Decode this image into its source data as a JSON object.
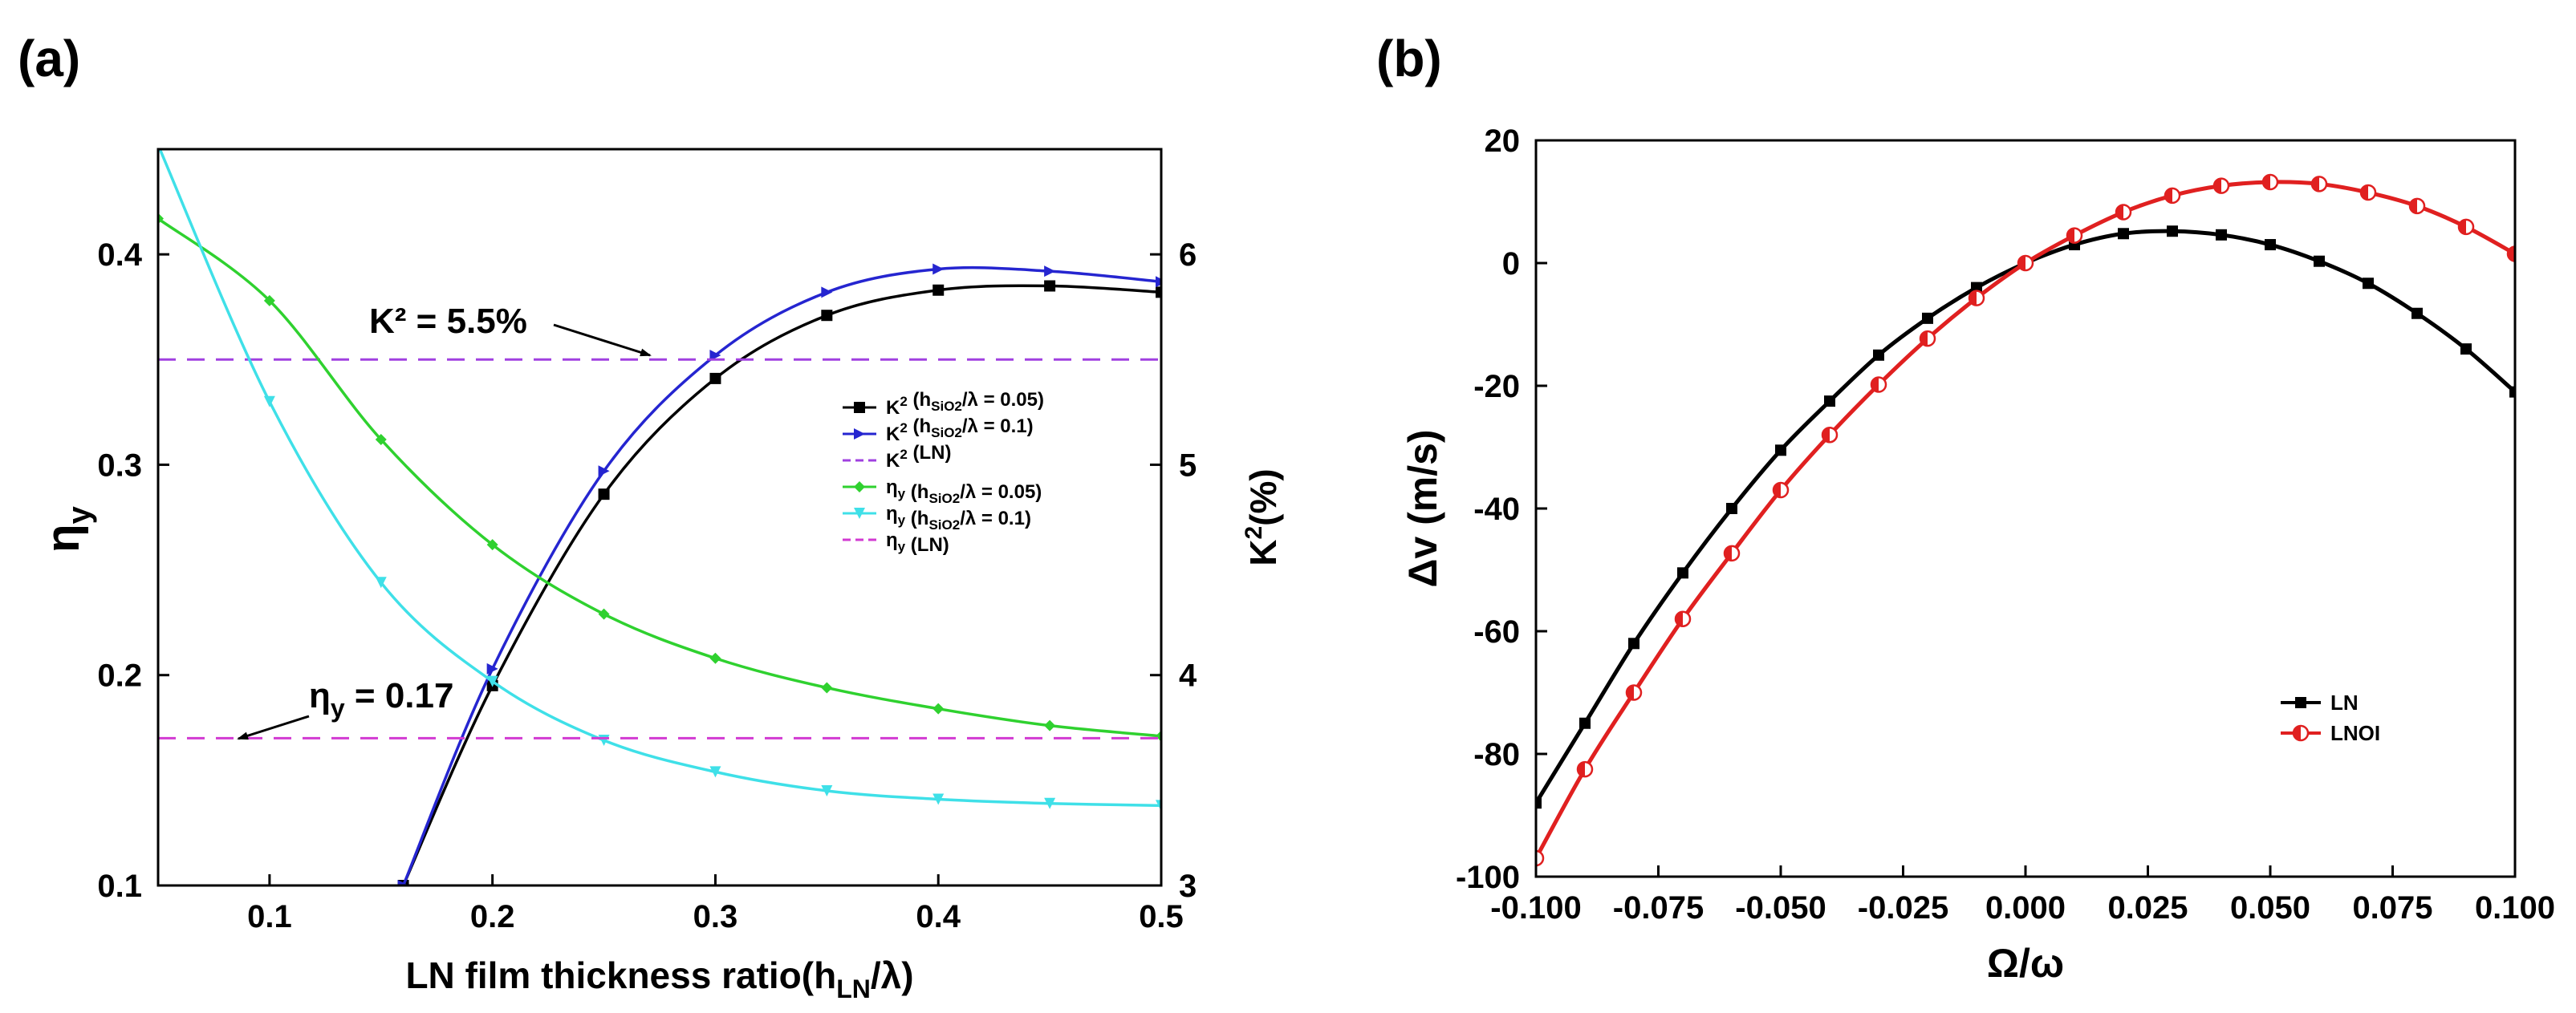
{
  "chart_data": [
    {
      "type": "line",
      "panel_label": "(a)",
      "xlabel_main": "LN film thickness ratio",
      "xlabel_h": "h",
      "xlabel_sub": "LN",
      "xlabel_tail": "/λ)",
      "xlabel_paren": "(",
      "ylabel_left_main": "η",
      "ylabel_left_sub": "y",
      "ylabel_right_main": "K",
      "ylabel_right_sup": "2",
      "ylabel_right_tail": "(%)",
      "xlim": [
        0.05,
        0.5
      ],
      "ylim_left": [
        0.1,
        0.45
      ],
      "ylim_right": [
        3,
        6.5
      ],
      "x_ticks": [
        "0.1",
        "0.2",
        "0.3",
        "0.4",
        "0.5"
      ],
      "y_left_ticks": [
        "0.1",
        "0.2",
        "0.3",
        "0.4"
      ],
      "y_right_ticks": [
        "3",
        "4",
        "5",
        "6"
      ],
      "annotations": {
        "k2_text": "K² = 5.5%",
        "eta_main": "η",
        "eta_sub": "y",
        "eta_tail": " = 0.17"
      },
      "legend_position": "center-right",
      "series": [
        {
          "key": "k2_005",
          "axis": "right",
          "color": "#000000",
          "marker": "square",
          "x": [
            0.16,
            0.2,
            0.25,
            0.3,
            0.35,
            0.4,
            0.45,
            0.5
          ],
          "y": [
            3.0,
            3.95,
            4.86,
            5.41,
            5.71,
            5.83,
            5.85,
            5.82
          ]
        },
        {
          "key": "k2_01",
          "axis": "right",
          "color": "#2525d0",
          "marker": "triangle-right",
          "x": [
            0.16,
            0.2,
            0.25,
            0.3,
            0.35,
            0.4,
            0.45,
            0.5
          ],
          "y": [
            3.0,
            4.03,
            4.97,
            5.52,
            5.82,
            5.93,
            5.92,
            5.87
          ]
        },
        {
          "key": "k2_ln",
          "axis": "right",
          "color": "#a040e0",
          "marker": "none",
          "dashed": true,
          "x": [
            0.05,
            0.5
          ],
          "y": [
            5.5,
            5.5
          ]
        },
        {
          "key": "eta_005",
          "axis": "left",
          "color": "#2fd12f",
          "marker": "diamond",
          "x": [
            0.05,
            0.1,
            0.15,
            0.2,
            0.25,
            0.3,
            0.35,
            0.4,
            0.45,
            0.5
          ],
          "y": [
            0.417,
            0.378,
            0.312,
            0.262,
            0.229,
            0.208,
            0.194,
            0.184,
            0.176,
            0.171
          ]
        },
        {
          "key": "eta_01",
          "axis": "left",
          "color": "#3fe0e8",
          "marker": "triangle-down",
          "x": [
            0.05,
            0.1,
            0.15,
            0.2,
            0.25,
            0.3,
            0.35,
            0.4,
            0.45,
            0.5
          ],
          "y": [
            0.452,
            0.33,
            0.244,
            0.197,
            0.169,
            0.154,
            0.145,
            0.141,
            0.139,
            0.138
          ]
        },
        {
          "key": "eta_ln",
          "axis": "left",
          "color": "#d23ad2",
          "marker": "none",
          "dashed": true,
          "x": [
            0.05,
            0.5
          ],
          "y": [
            0.17,
            0.17
          ]
        }
      ],
      "legend": [
        {
          "key": "k2_005",
          "main": "K",
          "sup": "2",
          "paren_open": " (h",
          "sub": "SiO2",
          "tail": "/λ = 0.05)"
        },
        {
          "key": "k2_01",
          "main": "K",
          "sup": "2",
          "paren_open": " (h",
          "sub": "SiO2",
          "tail": "/λ = 0.1)"
        },
        {
          "key": "k2_ln",
          "main": "K",
          "sup": "2",
          "paren_open": " (LN)",
          "sub": "",
          "tail": ""
        },
        {
          "key": "eta_005",
          "main": "η",
          "sup": "",
          "sub0": "y",
          "paren_open": " (h",
          "sub": "SiO2",
          "tail": "/λ = 0.05)"
        },
        {
          "key": "eta_01",
          "main": "η",
          "sup": "",
          "sub0": "y",
          "paren_open": " (h",
          "sub": "SiO2",
          "tail": "/λ = 0.1)"
        },
        {
          "key": "eta_ln",
          "main": "η",
          "sup": "",
          "sub0": "y",
          "paren_open": " (LN)",
          "sub": "",
          "tail": ""
        }
      ]
    },
    {
      "type": "line",
      "panel_label": "(b)",
      "xlabel": "Ω/ω",
      "ylabel": "Δv (m/s)",
      "xlim": [
        -0.1,
        0.1
      ],
      "ylim": [
        -100,
        20
      ],
      "x_ticks": [
        "-0.100",
        "-0.075",
        "-0.050",
        "-0.025",
        "0.000",
        "0.025",
        "0.050",
        "0.075",
        "0.100"
      ],
      "y_ticks": [
        "20",
        "0",
        "-20",
        "-40",
        "-60",
        "-80",
        "-100"
      ],
      "legend_position": "lower-right",
      "series": [
        {
          "name": "LN",
          "color": "#000000",
          "marker": "square",
          "x": [
            -0.1,
            -0.09,
            -0.08,
            -0.07,
            -0.06,
            -0.05,
            -0.04,
            -0.03,
            -0.02,
            -0.01,
            0.0,
            0.01,
            0.02,
            0.03,
            0.04,
            0.05,
            0.06,
            0.07,
            0.08,
            0.09,
            0.1
          ],
          "y": [
            -88,
            -75,
            -62,
            -50.5,
            -40,
            -30.5,
            -22.5,
            -15,
            -9,
            -4,
            0,
            3,
            4.8,
            5.2,
            4.6,
            3,
            0.3,
            -3.3,
            -8.2,
            -14,
            -21
          ]
        },
        {
          "name": "LNOI",
          "color": "#e02020",
          "marker": "half-circle",
          "x": [
            -0.1,
            -0.09,
            -0.08,
            -0.07,
            -0.06,
            -0.05,
            -0.04,
            -0.03,
            -0.02,
            -0.01,
            0.0,
            0.01,
            0.02,
            0.03,
            0.04,
            0.05,
            0.06,
            0.07,
            0.08,
            0.09,
            0.1
          ],
          "y": [
            -97,
            -82.5,
            -70,
            -58,
            -47.3,
            -37,
            -28,
            -19.8,
            -12.3,
            -5.7,
            0,
            4.5,
            8.3,
            11,
            12.6,
            13.2,
            12.9,
            11.5,
            9.3,
            5.9,
            1.5
          ]
        }
      ]
    }
  ]
}
